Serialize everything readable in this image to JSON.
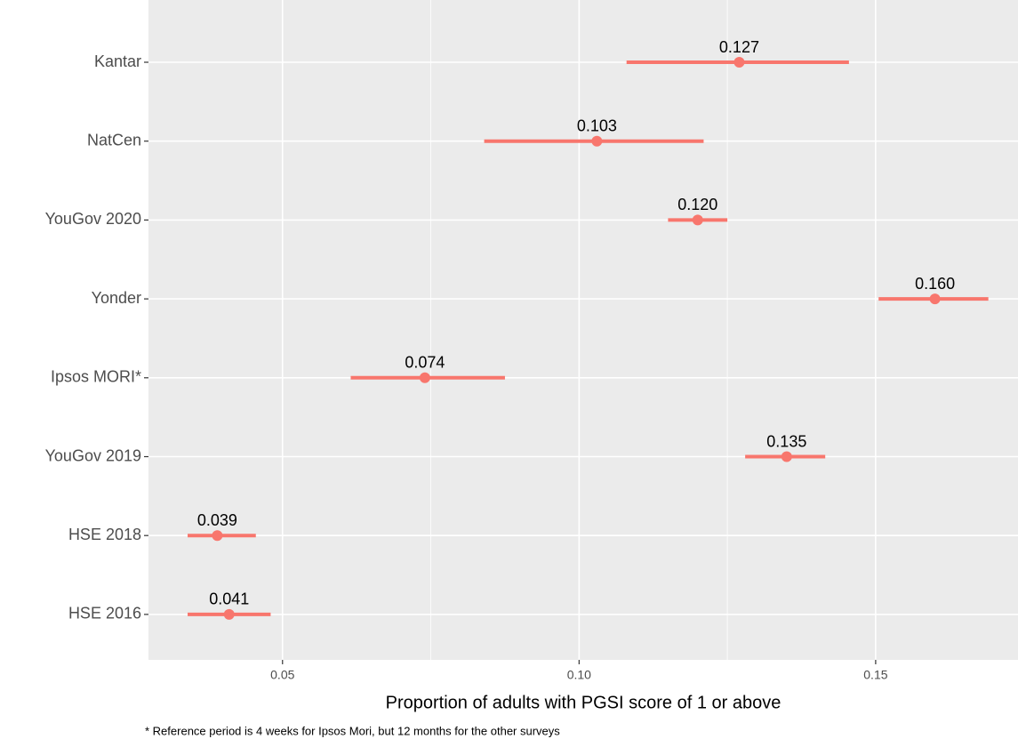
{
  "chart_data": {
    "type": "dot_errorbar",
    "categories": [
      "Kantar",
      "NatCen",
      "YouGov 2020",
      "Yonder",
      "Ipsos MORI*",
      "YouGov 2019",
      "HSE 2018",
      "HSE 2016"
    ],
    "values": [
      0.127,
      0.103,
      0.12,
      0.16,
      0.074,
      0.135,
      0.039,
      0.041
    ],
    "value_labels": [
      "0.127",
      "0.103",
      "0.120",
      "0.160",
      "0.074",
      "0.135",
      "0.039",
      "0.041"
    ],
    "lower": [
      0.108,
      0.084,
      0.115,
      0.1505,
      0.0615,
      0.128,
      0.034,
      0.034
    ],
    "upper": [
      0.1455,
      0.121,
      0.125,
      0.169,
      0.0875,
      0.1415,
      0.0455,
      0.048
    ],
    "color": "#f8766d",
    "xlim": [
      0.0274,
      0.174
    ],
    "xticks": [
      {
        "value": 0.05,
        "label": "0.05"
      },
      {
        "value": 0.1,
        "label": "0.10"
      },
      {
        "value": 0.15,
        "label": "0.15"
      }
    ],
    "minor_xticks": [
      0.075,
      0.125
    ],
    "grid": true,
    "xlabel": "Proportion of adults with PGSI score of 1 or above",
    "footnote": "* Reference period is 4 weeks for Ipsos Mori, but 12 months for the other surveys"
  }
}
